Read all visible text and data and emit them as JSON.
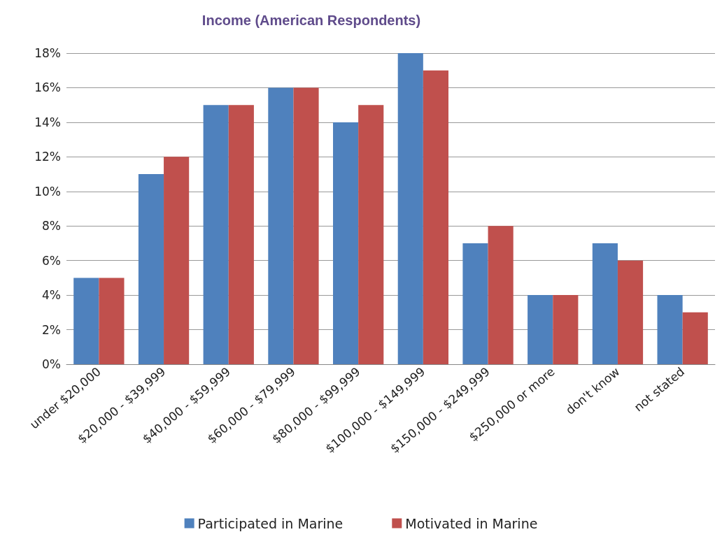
{
  "chart_data": {
    "type": "bar",
    "title": "Income (American Respondents)",
    "categories": [
      "under $20,000",
      "$20,000 - $39,999",
      "$40,000 - $59,999",
      "$60,000 - $79,999",
      "$80,000 - $99,999",
      "$100,000 - $149,999",
      "$150,000 - $249,999",
      "$250,000 or more",
      "don't know",
      "not stated"
    ],
    "series": [
      {
        "name": "Participated in Marine",
        "color": "#4f81bd",
        "values": [
          5,
          11,
          15,
          16,
          14,
          18,
          7,
          4,
          7,
          4
        ]
      },
      {
        "name": "Motivated in Marine",
        "color": "#c0504d",
        "values": [
          5,
          12,
          15,
          16,
          15,
          17,
          8,
          4,
          6,
          3
        ]
      }
    ],
    "ylim": [
      0,
      18
    ],
    "yticks": [
      {
        "value": 0,
        "label": "0%"
      },
      {
        "value": 2,
        "label": "2%"
      },
      {
        "value": 4,
        "label": "4%"
      },
      {
        "value": 6,
        "label": "6%"
      },
      {
        "value": 8,
        "label": "8%"
      },
      {
        "value": 10,
        "label": "10%"
      },
      {
        "value": 12,
        "label": "12%"
      },
      {
        "value": 14,
        "label": "14%"
      },
      {
        "value": 16,
        "label": "16%"
      },
      {
        "value": 18,
        "label": "18%"
      }
    ],
    "grid": "y",
    "legend": "bottom"
  }
}
